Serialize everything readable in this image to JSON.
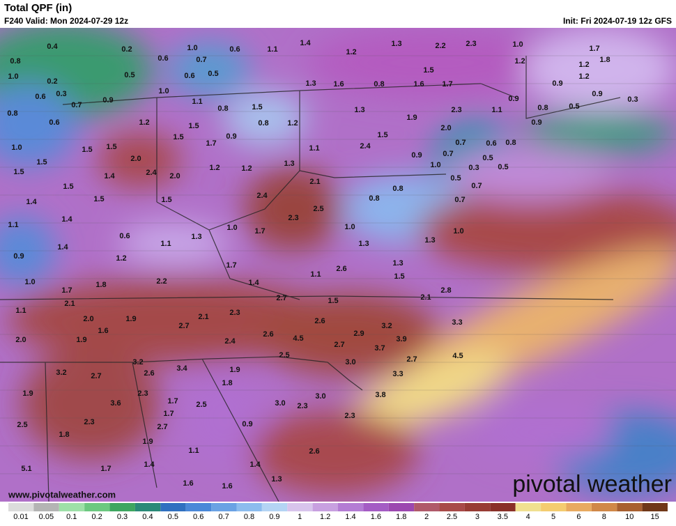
{
  "header": {
    "title": "Total QPF (in)",
    "valid": "F240 Valid: Mon 2024-07-29 12z",
    "init": "Init: Fri 2024-07-19 12z GFS"
  },
  "watermark": "www.pivotalweather.com",
  "logo": "pivotal weather",
  "colorbar": {
    "ticks": [
      0.01,
      0.05,
      0.1,
      0.2,
      0.3,
      0.4,
      0.5,
      0.6,
      0.7,
      0.8,
      0.9,
      1,
      1.2,
      1.4,
      1.6,
      1.8,
      2,
      2.5,
      3,
      3.5,
      4,
      5,
      6,
      8,
      10,
      15
    ],
    "colors": [
      "#dcdcdc",
      "#b4b4b4",
      "#9ee0a8",
      "#6cc880",
      "#3ea660",
      "#2a8a78",
      "#3070c0",
      "#4a88d8",
      "#6aa2e4",
      "#8cbcee",
      "#b4d4f4",
      "#d8c4ec",
      "#c8a0e0",
      "#b47cd4",
      "#a45cc4",
      "#9c48b0",
      "#b05a6a",
      "#a84a48",
      "#983c34",
      "#8a3028",
      "#f0e090",
      "#f4cc70",
      "#e8aa60",
      "#d08848",
      "#a86030",
      "#703818"
    ]
  },
  "point_labels": [
    "0.4",
    "0.2",
    "0.6",
    "1.0",
    "0.7",
    "0.6",
    "1.1",
    "1.4",
    "1.2",
    "1.3",
    "2.2",
    "2.3",
    "1.0",
    "1.7",
    "0.8",
    "0.5",
    "0.6",
    "0.5",
    "1.2",
    "1.2",
    "1.8",
    "1.0",
    "0.2",
    "1.5",
    "1.2",
    "0.3",
    "1.3",
    "1.6",
    "0.8",
    "1.6",
    "1.7",
    "0.9",
    "0.6",
    "0.9",
    "1.0",
    "0.9",
    "0.7",
    "1.1",
    "0.8",
    "1.5",
    "1.3",
    "2.3",
    "1.1",
    "0.9",
    "0.8",
    "0.5",
    "0.3",
    "0.8",
    "1.2",
    "0.8",
    "1.2",
    "1.9",
    "0.6",
    "1.5",
    "2.0",
    "0.9",
    "1.5",
    "0.9",
    "1.5",
    "1.7",
    "1.0",
    "1.5",
    "1.5",
    "1.1",
    "2.4",
    "0.7",
    "0.6",
    "0.8",
    "2.0",
    "0.9",
    "0.7",
    "0.5",
    "1.5",
    "1.2",
    "1.2",
    "1.3",
    "1.0",
    "0.3",
    "0.5",
    "1.5",
    "1.4",
    "2.4",
    "2.0",
    "2.1",
    "0.5",
    "1.5",
    "0.8",
    "0.7",
    "2.4",
    "1.5",
    "1.4",
    "1.5",
    "0.8",
    "0.7",
    "2.5",
    "1.4",
    "2.3",
    "1.1",
    "1.0",
    "1.7",
    "1.0",
    "1.0",
    "0.6",
    "1.3",
    "1.1",
    "1.4",
    "1.3",
    "1.3",
    "0.9",
    "1.2",
    "1.7",
    "2.6",
    "1.3",
    "1.1",
    "1.5",
    "1.0",
    "1.8",
    "2.2",
    "1.4",
    "1.7",
    "2.8",
    "2.7",
    "2.1",
    "2.1",
    "1.5",
    "1.1",
    "2.3",
    "2.1",
    "2.0",
    "1.9",
    "2.6",
    "3.2",
    "3.3",
    "2.7",
    "1.6",
    "2.6",
    "2.9",
    "2.0",
    "1.9",
    "2.4",
    "4.5",
    "3.9",
    "2.7",
    "3.7",
    "2.5",
    "4.5",
    "2.7",
    "3.2",
    "3.4",
    "3.0",
    "3.2",
    "2.7",
    "2.6",
    "1.9",
    "3.3",
    "1.8",
    "1.9",
    "2.3",
    "3.0",
    "3.8",
    "3.6",
    "1.7",
    "2.5",
    "3.0",
    "2.3",
    "1.7",
    "2.3",
    "2.3",
    "2.5",
    "2.7",
    "0.9",
    "1.8",
    "1.9",
    "1.1",
    "2.6",
    "1.4",
    "1.4",
    "5.1",
    "1.7",
    "1.3",
    "1.6",
    "1.6"
  ]
}
